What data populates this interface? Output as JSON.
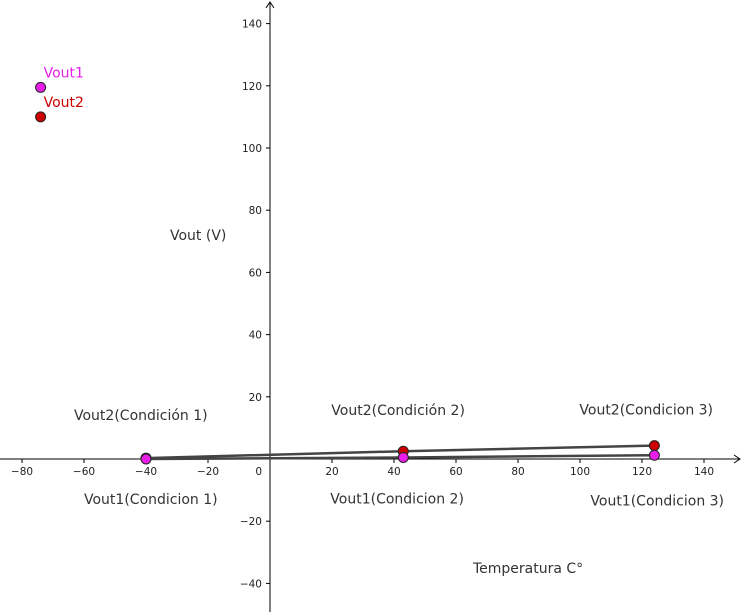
{
  "chart_data": {
    "type": "line",
    "xlabel": "Temperatura C°",
    "ylabel": "Vout (V)",
    "xlim": [
      -87,
      151
    ],
    "ylim": [
      -49,
      145
    ],
    "x_ticks": [
      -80,
      -60,
      -40,
      -20,
      20,
      40,
      60,
      80,
      100,
      120,
      140
    ],
    "y_ticks": [
      -40,
      -20,
      20,
      40,
      60,
      80,
      100,
      120,
      140
    ],
    "origin_label": "0",
    "grid": false,
    "colors": {
      "Vout1": "#e81ee8",
      "Vout2": "#cc0000",
      "line": "#444444"
    },
    "series": [
      {
        "name": "Vout1",
        "x": [
          -40,
          43,
          124
        ],
        "y": [
          0,
          0.5,
          1.2
        ],
        "labels": [
          "Vout1(Condicion 1)",
          "Vout1(Condicion 2)",
          "Vout1(Condicion 3)"
        ]
      },
      {
        "name": "Vout2",
        "x": [
          -40,
          43,
          124
        ],
        "y": [
          0.3,
          2.5,
          4.3
        ],
        "labels": [
          "Vout2(Condición 1)",
          "Vout2(Condición 2)",
          "Vout2(Condicion 3)"
        ]
      }
    ],
    "legend": [
      {
        "name": "Vout1",
        "x": -74,
        "y": 119.5
      },
      {
        "name": "Vout2",
        "x": -74,
        "y": 110
      }
    ]
  }
}
